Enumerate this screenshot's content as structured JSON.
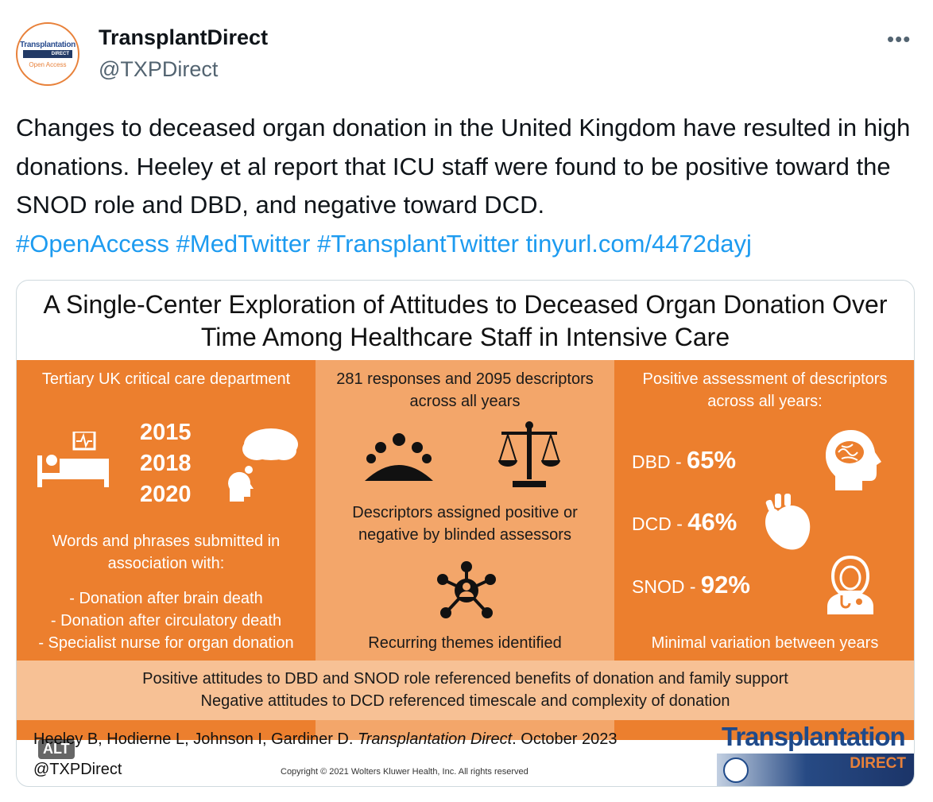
{
  "author": {
    "display_name": "TransplantDirect",
    "handle": "@TXPDirect",
    "avatar": {
      "line1": "Transplantation",
      "line2": "DIRECT",
      "line3": "Open Access"
    }
  },
  "icons": {
    "more": "more-dots-icon"
  },
  "tweet": {
    "text": "Changes to deceased organ donation in the United Kingdom have resulted in high donations. Heeley et al report that ICU staff were found to be positive toward the SNOD role and DBD, and negative toward DCD.",
    "hashtags": [
      "#OpenAccess",
      "#MedTwitter",
      "#TransplantTwitter"
    ],
    "link": "tinyurl.com/4472dayj"
  },
  "infographic": {
    "title": "A Single-Center Exploration of Attitudes to Deceased Organ Donation Over Time Among Healthcare Staff in Intensive Care",
    "left": {
      "heading": "Tertiary UK critical care department",
      "years": [
        "2015",
        "2018",
        "2020"
      ],
      "words_intro": "Words and phrases submitted in association with:",
      "items": [
        "- Donation after brain death",
        "- Donation after circulatory death",
        "- Specialist nurse for organ donation"
      ]
    },
    "middle": {
      "heading": "281 responses and 2095 descriptors across all years",
      "assigned": "Descriptors assigned positive or negative by blinded assessors",
      "themes": "Recurring themes identified"
    },
    "right": {
      "heading": "Positive assessment of descriptors across all years:",
      "stats": [
        {
          "label": "DBD - ",
          "value": "65%"
        },
        {
          "label": "DCD - ",
          "value": "46%"
        },
        {
          "label": "SNOD - ",
          "value": "92%"
        }
      ],
      "footer": "Minimal variation between years"
    },
    "bottom": {
      "line1": "Positive attitudes to DBD and SNOD role referenced benefits of donation and family support",
      "line2": "Negative attitudes to DCD referenced timescale and complexity of donation"
    },
    "citation_authors": "Heeley B, Hodierne L, Johnson I, Gardiner D. ",
    "citation_journal": "Transplantation Direct",
    "citation_date": ". October 2023",
    "handle": "@TXPDirect",
    "copyright": "Copyright © 2021  Wolters Kluwer Health, Inc. All rights reserved",
    "logo": {
      "line1": "Transplantation",
      "line2": "DIRECT"
    },
    "alt_label": "ALT"
  },
  "colors": {
    "orange": "#ec7f2e",
    "light_orange": "#f3a66a",
    "peach": "#f7c195",
    "link": "#1d9bf0"
  }
}
